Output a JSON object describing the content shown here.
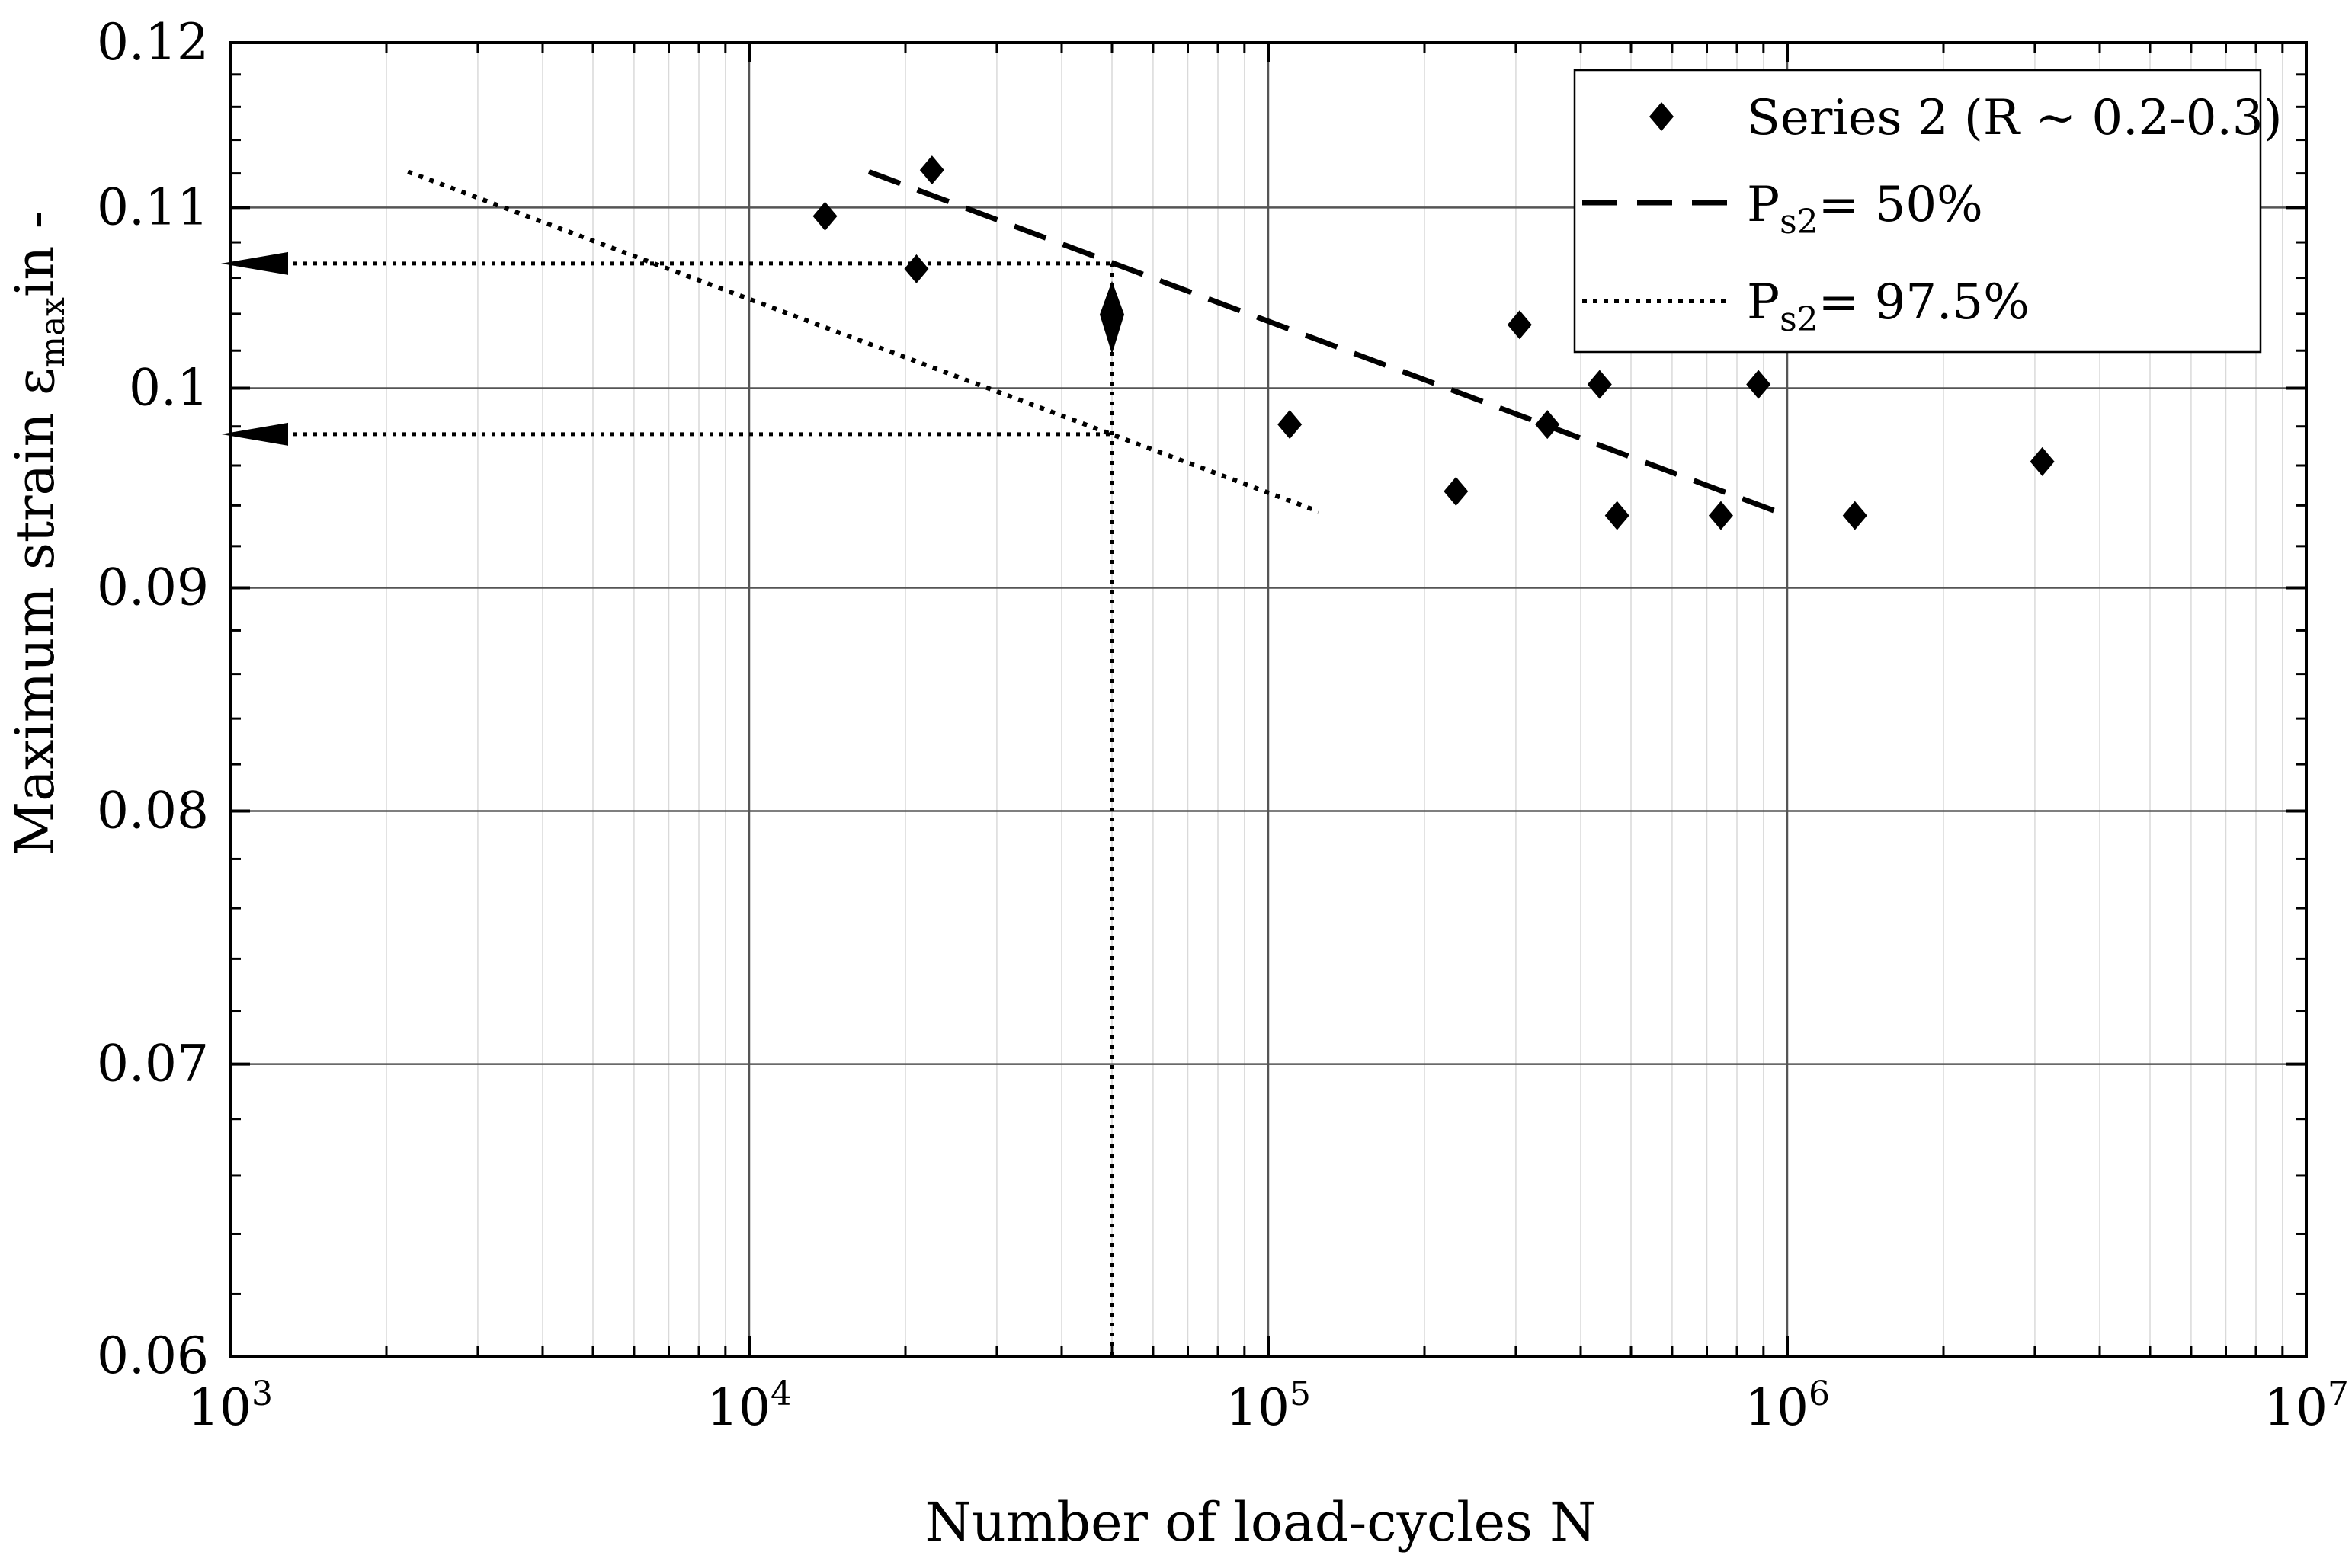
{
  "chart_data": {
    "type": "scatter",
    "title": "",
    "xlabel": "Number of load-cycles N",
    "ylabel": {
      "main": "Maximum strain ε",
      "subscript": "max",
      "suffix": "in -"
    },
    "x_scale": "log",
    "xlim": [
      1000,
      10000000
    ],
    "y_scale": "log",
    "ylim": [
      0.06,
      0.12
    ],
    "grid": true,
    "legend_position": "top-right",
    "x_ticks": [
      {
        "value": 1000,
        "base": "10",
        "exp": "3"
      },
      {
        "value": 10000,
        "base": "10",
        "exp": "4"
      },
      {
        "value": 100000,
        "base": "10",
        "exp": "5"
      },
      {
        "value": 1000000,
        "base": "10",
        "exp": "6"
      },
      {
        "value": 10000000,
        "base": "10",
        "exp": "7"
      }
    ],
    "y_ticks": [
      {
        "value": 0.06,
        "label": "0.06"
      },
      {
        "value": 0.07,
        "label": "0.07"
      },
      {
        "value": 0.08,
        "label": "0.08"
      },
      {
        "value": 0.09,
        "label": "0.09"
      },
      {
        "value": 0.1,
        "label": "0.1"
      },
      {
        "value": 0.11,
        "label": "0.11"
      },
      {
        "value": 0.12,
        "label": "0.12"
      }
    ],
    "scatter_series": {
      "name": "Series 2 (R ~ 0.2-0.3)",
      "marker": "diamond",
      "color": "#000000",
      "points": [
        {
          "x": 14000,
          "y": 0.1095
        },
        {
          "x": 21000,
          "y": 0.1065
        },
        {
          "x": 22500,
          "y": 0.1122
        },
        {
          "x": 110000,
          "y": 0.0981
        },
        {
          "x": 230000,
          "y": 0.0947
        },
        {
          "x": 305000,
          "y": 0.1034
        },
        {
          "x": 345000,
          "y": 0.0981
        },
        {
          "x": 435000,
          "y": 0.1002
        },
        {
          "x": 470000,
          "y": 0.0935
        },
        {
          "x": 745000,
          "y": 0.0935
        },
        {
          "x": 880000,
          "y": 0.1002
        },
        {
          "x": 1350000,
          "y": 0.0935
        },
        {
          "x": 3100000,
          "y": 0.0962
        }
      ]
    },
    "line_series": [
      {
        "name_main": "P",
        "name_sub": "s2",
        "name_suffix": "= 50%",
        "style": "dashed",
        "color": "#000000",
        "x": [
          17000,
          1000000
        ],
        "y": [
          0.1121,
          0.0935
        ]
      },
      {
        "name_main": "P",
        "name_sub": "s2",
        "name_suffix": "= 97.5%",
        "style": "dotted",
        "color": "#000000",
        "x": [
          2200,
          125000
        ],
        "y": [
          0.1121,
          0.0937
        ]
      }
    ],
    "annotations": {
      "style": "dotted",
      "vertical_line": {
        "x": 50000,
        "y_from": 0.06,
        "y_to": 0.1068
      },
      "horizontal_lines": [
        {
          "x_from": 1000,
          "x_to": 50000,
          "y": 0.1068
        },
        {
          "x_from": 1000,
          "x_to": 50000,
          "y": 0.0976
        }
      ],
      "arrows": [
        {
          "direction": "left",
          "x": 1000,
          "y": 0.1068
        },
        {
          "direction": "left",
          "x": 1000,
          "y": 0.0976
        },
        {
          "direction": "down",
          "x": 50000,
          "y": 0.1038
        }
      ]
    }
  }
}
